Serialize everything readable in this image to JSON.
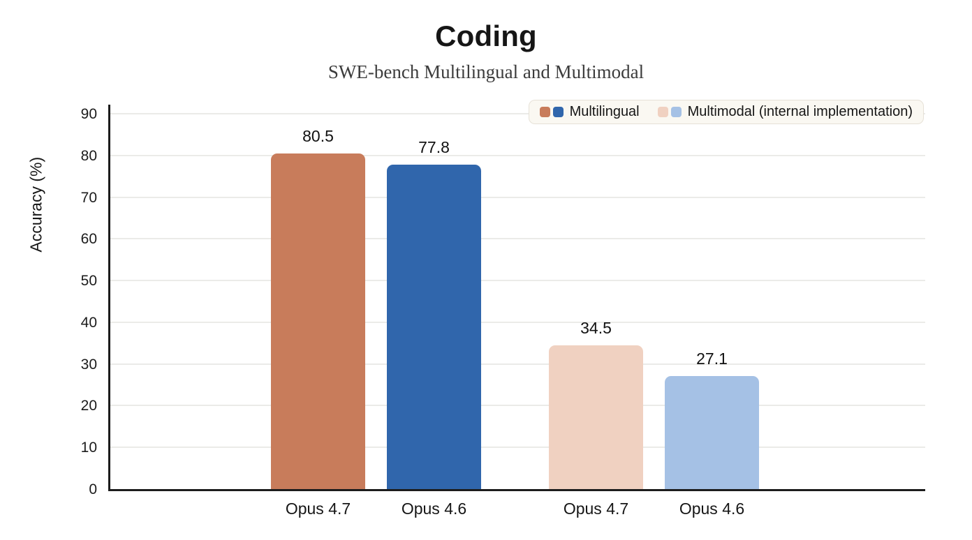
{
  "chart_data": {
    "type": "bar",
    "title": "Coding",
    "subtitle": "SWE-bench Multilingual and Multimodal",
    "ylabel": "Accuracy (%)",
    "xlabel": "",
    "ylim": [
      0,
      90
    ],
    "ytick_step": 10,
    "grid": true,
    "legend_position": "top-right",
    "categories": [
      "Opus 4.7",
      "Opus 4.6",
      "Opus 4.7",
      "Opus 4.6"
    ],
    "series": [
      {
        "name": "Multilingual",
        "values": [
          80.5,
          77.8
        ],
        "colors": [
          "#c87c5b",
          "#3066ac"
        ]
      },
      {
        "name": "Multimodal (internal implementation)",
        "values": [
          34.5,
          27.1
        ],
        "colors": [
          "#f0d1c1",
          "#a5c1e5"
        ]
      }
    ],
    "bars": [
      {
        "category": "Opus 4.7",
        "series": "Multilingual",
        "value": 80.5,
        "value_label": "80.5",
        "color": "#c87c5b"
      },
      {
        "category": "Opus 4.6",
        "series": "Multilingual",
        "value": 77.8,
        "value_label": "77.8",
        "color": "#3066ac"
      },
      {
        "category": "Opus 4.7",
        "series": "Multimodal (internal implementation)",
        "value": 34.5,
        "value_label": "34.5",
        "color": "#f0d1c1"
      },
      {
        "category": "Opus 4.6",
        "series": "Multimodal (internal implementation)",
        "value": 27.1,
        "value_label": "27.1",
        "color": "#a5c1e5"
      }
    ],
    "legend": [
      {
        "label": "Multilingual",
        "swatch_colors": [
          "#c87c5b",
          "#3066ac"
        ]
      },
      {
        "label": "Multimodal (internal implementation)",
        "swatch_colors": [
          "#f0d1c1",
          "#a5c1e5"
        ]
      }
    ],
    "colors": {
      "axis": "#1c1c1c",
      "gridline": "#ebebe8",
      "legend_background": "#faf8f2",
      "legend_border": "#e6e1d7",
      "background": "#ffffff"
    }
  }
}
